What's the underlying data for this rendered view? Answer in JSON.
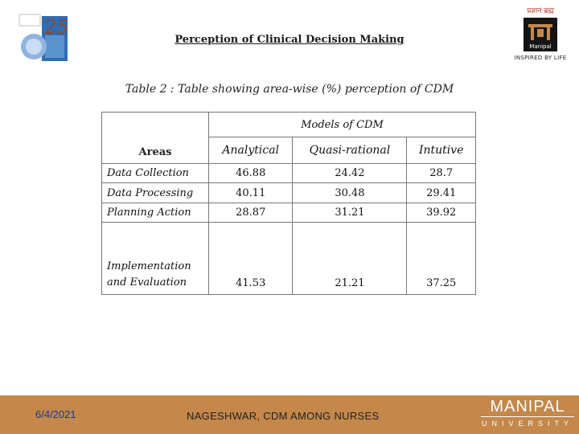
{
  "header": {
    "title": "Perception of Clinical Decision Making",
    "caption": "Table 2 : Table showing area-wise  (%) perception of CDM",
    "right_logo_top": "प्रज्ञानं ब्रह्म",
    "right_logo_name": "Manipal",
    "right_logo_tagline": "INSPIRED BY LIFE",
    "left_logo_number": "25"
  },
  "table": {
    "group_header": "Models of CDM",
    "areas_header": "Areas",
    "columns": [
      "Analytical",
      "Quasi-rational",
      "Intutive"
    ],
    "rows": [
      {
        "area": "Data Collection",
        "values": [
          "46.88",
          "24.42",
          "28.7"
        ]
      },
      {
        "area": "Data Processing",
        "values": [
          "40.11",
          "30.48",
          "29.41"
        ]
      },
      {
        "area": "Planning Action",
        "values": [
          "28.87",
          "31.21",
          "39.92"
        ]
      },
      {
        "area": "Implementation and Evaluation",
        "values": [
          "41.53",
          "21.21",
          "37.25"
        ]
      }
    ]
  },
  "footer": {
    "date": "6/4/2021",
    "center_text": "NAGESHWAR, CDM AMONG NURSES",
    "brand_name": "MANIPAL",
    "brand_sub": "UNIVERSITY"
  },
  "colors": {
    "footer_bg": "#c4884b",
    "date_text": "#1a3a8a",
    "logo_blue": "#2f6db5"
  }
}
